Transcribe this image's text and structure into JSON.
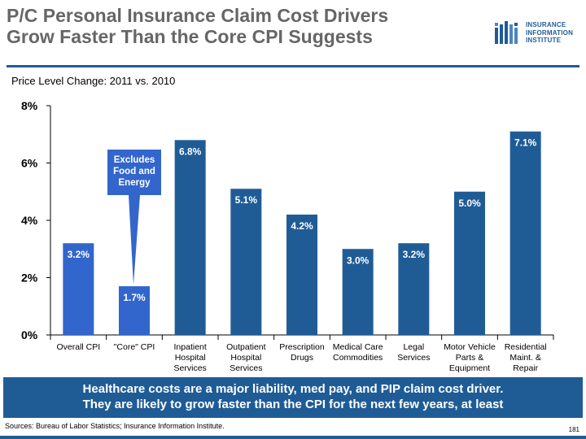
{
  "header": {
    "title_line1": "P/C Personal Insurance Claim Cost Drivers",
    "title_line2": "Grow Faster Than the Core CPI Suggests",
    "subtitle": "Price Level Change: 2011 vs. 2010"
  },
  "logo": {
    "line1": "INSURANCE",
    "line2": "INFORMATION",
    "line3": "INSTITUTE",
    "icon": "iii-logo-icon"
  },
  "callout": {
    "line1": "Excludes",
    "line2": "Food and",
    "line3": "Energy"
  },
  "chart_data": {
    "type": "bar",
    "title": "Price Level Change: 2011 vs. 2010",
    "categories": [
      [
        "Overall CPI"
      ],
      [
        "\"Core\" CPI"
      ],
      [
        "Inpatient",
        "Hospital",
        "Services"
      ],
      [
        "Outpatient",
        "Hospital",
        "Services"
      ],
      [
        "Prescription",
        "Drugs"
      ],
      [
        "Medical Care",
        "Commodities"
      ],
      [
        "Legal",
        "Services"
      ],
      [
        "Motor Vehicle",
        "Parts &",
        "Equipment"
      ],
      [
        "Residential",
        "Maint. &",
        "Repair"
      ]
    ],
    "values": [
      3.2,
      1.7,
      6.8,
      5.1,
      4.2,
      3.0,
      3.2,
      5.0,
      7.1
    ],
    "data_labels": [
      "3.2%",
      "1.7%",
      "6.8%",
      "5.1%",
      "4.2%",
      "3.0%",
      "3.2%",
      "5.0%",
      "7.1%"
    ],
    "colors": [
      "#3366cc",
      "#3366cc",
      "#1f5c96",
      "#1f5c96",
      "#1f5c96",
      "#1f5c96",
      "#1f5c96",
      "#1f5c96",
      "#1f5c96"
    ],
    "ylim": [
      0,
      8
    ],
    "yticks": [
      0,
      2,
      4,
      6,
      8
    ],
    "ytick_labels": [
      "0%",
      "2%",
      "4%",
      "6%",
      "8%"
    ],
    "xlabel": "",
    "ylabel": ""
  },
  "banner": {
    "line1": "Healthcare costs are a major liability, med pay, and PIP claim cost driver.",
    "line2": "They are likely to grow faster than the CPI for the next few years, at least"
  },
  "footer": {
    "source": "Sources: Bureau of Labor Statistics; Insurance Information Institute.",
    "page_number": "181"
  }
}
